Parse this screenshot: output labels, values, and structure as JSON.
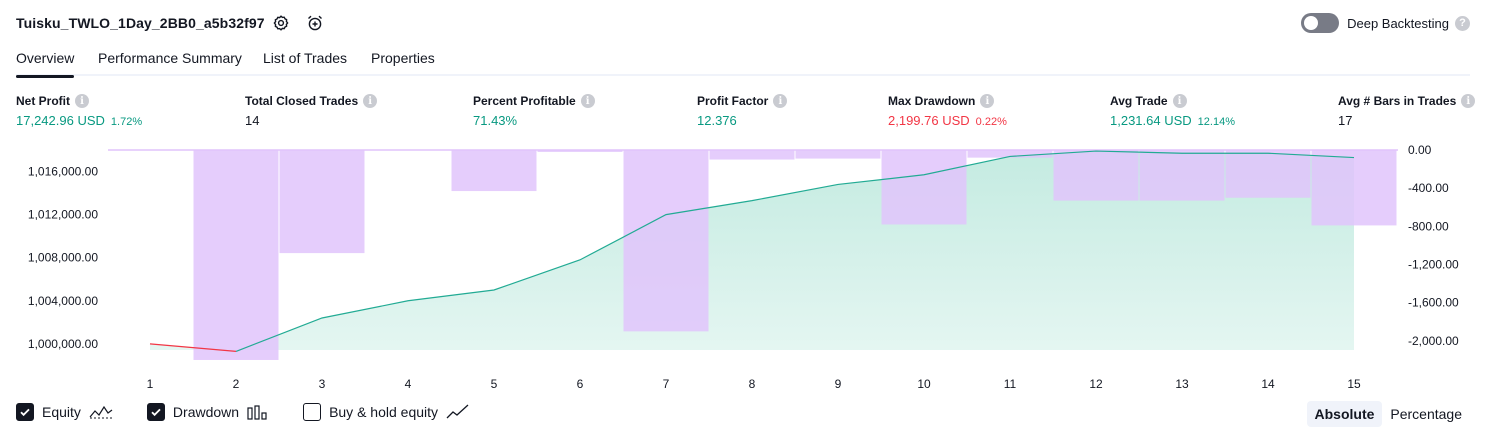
{
  "header": {
    "title": "Tuisku_TWLO_1Day_2BB0_a5b32f97",
    "deep_backtesting_label": "Deep Backtesting",
    "help_mark": "?"
  },
  "tabs": [
    {
      "label": "Overview",
      "active": true
    },
    {
      "label": "Performance Summary",
      "active": false
    },
    {
      "label": "List of Trades",
      "active": false
    },
    {
      "label": "Properties",
      "active": false
    }
  ],
  "metrics": {
    "info_glyph": "i",
    "net_profit": {
      "label": "Net Profit",
      "value": "17,242.96 USD",
      "pct": "1.72%"
    },
    "total_closed_trades": {
      "label": "Total Closed Trades",
      "value": "14"
    },
    "percent_profitable": {
      "label": "Percent Profitable",
      "value": "71.43%"
    },
    "profit_factor": {
      "label": "Profit Factor",
      "value": "12.376"
    },
    "max_drawdown": {
      "label": "Max Drawdown",
      "value": "2,199.76 USD",
      "pct": "0.22%"
    },
    "avg_trade": {
      "label": "Avg Trade",
      "value": "1,231.64 USD",
      "pct": "12.14%"
    },
    "avg_bars": {
      "label": "Avg # Bars in Trades",
      "value": "17"
    }
  },
  "colors": {
    "positive": "#089981",
    "negative": "#f23645",
    "equity_line": "#22ab94",
    "equity_fill": "#c4ebe1",
    "drawdown_bar": "#e1c4fc",
    "overlap_bar": "#b3b5e6"
  },
  "chart_data": {
    "type": "area",
    "x": [
      1,
      2,
      3,
      4,
      5,
      6,
      7,
      8,
      9,
      10,
      11,
      12,
      13,
      14,
      15
    ],
    "series": [
      {
        "name": "Equity",
        "axis": "left",
        "values": [
          1000000,
          999300,
          1002400,
          1004000,
          1005000,
          1007800,
          1012000,
          1013300,
          1014800,
          1015700,
          1017400,
          1017900,
          1017700,
          1017700,
          1017300
        ]
      },
      {
        "name": "Drawdown",
        "axis": "right",
        "values": [
          0,
          -2199.76,
          -1080,
          0,
          -430,
          -20,
          -1900,
          -100,
          -90,
          -780,
          -80,
          -530,
          -530,
          -500,
          -790
        ]
      }
    ],
    "left_axis": {
      "ticks": [
        1000000,
        1004000,
        1008000,
        1012000,
        1016000
      ],
      "tick_labels": [
        "1,000,000.00",
        "1,004,000.00",
        "1,008,000.00",
        "1,012,000.00",
        "1,016,000.00"
      ],
      "range": [
        998500,
        1018000
      ]
    },
    "right_axis": {
      "ticks": [
        0,
        -400,
        -800,
        -1200,
        -1600,
        -2000
      ],
      "tick_labels": [
        "0.00",
        "-400.00",
        "-800.00",
        "-1,200.00",
        "-1,600.00",
        "-2,000.00"
      ],
      "range": [
        -2200,
        0
      ]
    },
    "x_tick_labels": [
      "1",
      "2",
      "3",
      "4",
      "5",
      "6",
      "7",
      "8",
      "9",
      "10",
      "11",
      "12",
      "13",
      "14",
      "15"
    ]
  },
  "legend": {
    "equity": {
      "label": "Equity",
      "checked": true
    },
    "drawdown": {
      "label": "Drawdown",
      "checked": true
    },
    "buy_hold": {
      "label": "Buy & hold equity",
      "checked": false
    }
  },
  "view_toggle": {
    "absolute": "Absolute",
    "percentage": "Percentage",
    "selected": "Absolute"
  }
}
